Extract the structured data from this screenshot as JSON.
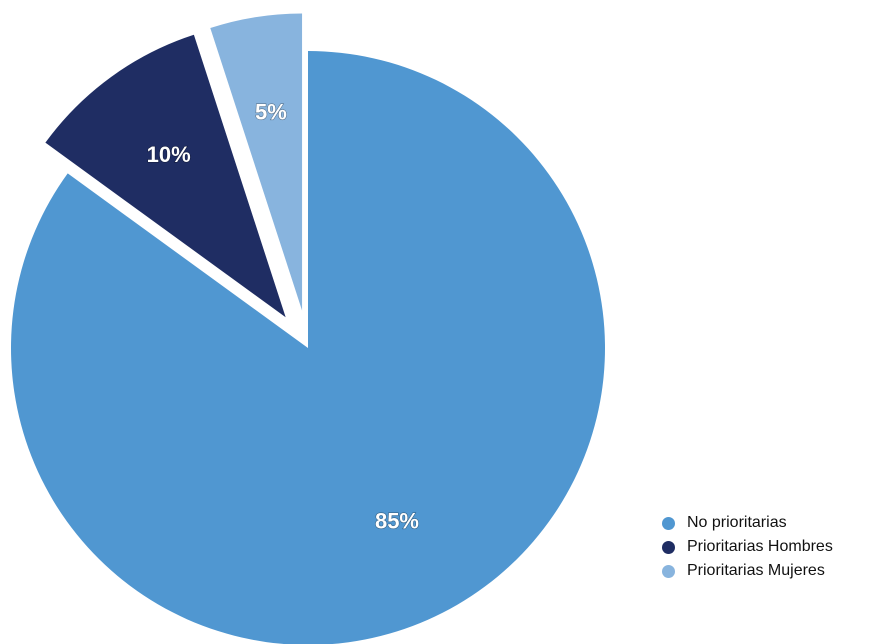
{
  "chart_data": {
    "type": "pie",
    "title": "",
    "slices": [
      {
        "label": "No prioritarias",
        "value": 85,
        "display": "85%",
        "color": "#5097d1",
        "exploded": false
      },
      {
        "label": "Prioritarias Hombres",
        "value": 10,
        "display": "10%",
        "color": "#1f2d63",
        "exploded": true
      },
      {
        "label": "Prioritarias Mujeres",
        "value": 5,
        "display": "5%",
        "color": "#88b4de",
        "exploded": true
      }
    ],
    "start_angle_deg": 0,
    "direction": "clockwise",
    "legend": {
      "position": "bottom-right",
      "items": [
        {
          "label": "No prioritarias",
          "color": "#5097d1"
        },
        {
          "label": "Prioritarias Hombres",
          "color": "#1f2d63"
        },
        {
          "label": "Prioritarias Mujeres",
          "color": "#88b4de"
        }
      ]
    }
  }
}
